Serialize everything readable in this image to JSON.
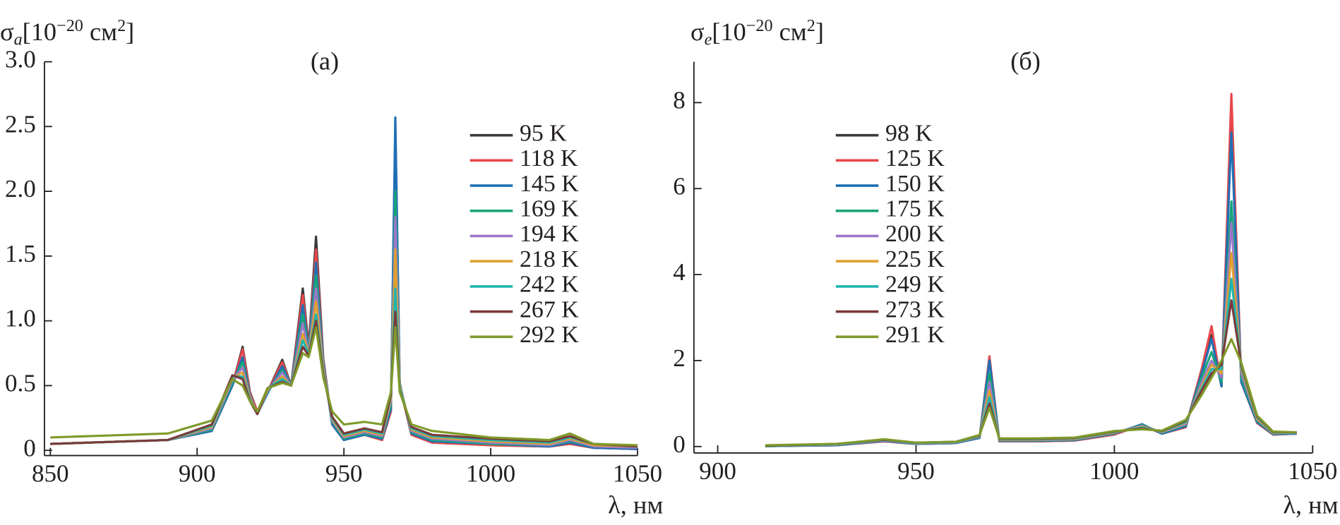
{
  "chart_data": [
    {
      "type": "line",
      "title": "(а)",
      "ylabel": [
        "σ",
        "a",
        "[10",
        "−20",
        " см",
        "2",
        "]"
      ],
      "xlabel": "λ, нм",
      "xlim": [
        848,
        1050
      ],
      "xticks": [
        850,
        900,
        950,
        1000,
        1050
      ],
      "ylim": [
        -0.04,
        3.0
      ],
      "yticks": [
        0,
        0.5,
        {
          "value": 1,
          "label": "1.0"
        },
        1.5,
        {
          "value": 2,
          "label": "2.0"
        },
        2.5,
        {
          "value": 3,
          "label": "3.0"
        }
      ],
      "legend": "upper right",
      "x": [
        850,
        890,
        905,
        912,
        915.5,
        918,
        920.5,
        924,
        929,
        932,
        936,
        938,
        940.5,
        943,
        946,
        950,
        957,
        963,
        966,
        967.5,
        969,
        973,
        980,
        1000,
        1020,
        1027,
        1035,
        1050
      ],
      "series": [
        {
          "name": "95 K",
          "color": "#3a3a3a",
          "values": [
            0.05,
            0.08,
            0.15,
            0.5,
            0.8,
            0.45,
            0.3,
            0.45,
            0.7,
            0.5,
            1.25,
            0.8,
            1.65,
            0.7,
            0.2,
            0.08,
            0.12,
            0.08,
            0.3,
            2.45,
            0.5,
            0.12,
            0.06,
            0.04,
            0.03,
            0.05,
            0.02,
            0.01
          ]
        },
        {
          "name": "118 K",
          "color": "#e8474b",
          "values": [
            0.05,
            0.08,
            0.15,
            0.5,
            0.78,
            0.44,
            0.3,
            0.45,
            0.68,
            0.5,
            1.2,
            0.78,
            1.55,
            0.68,
            0.2,
            0.08,
            0.12,
            0.08,
            0.3,
            2.5,
            0.5,
            0.12,
            0.06,
            0.04,
            0.03,
            0.05,
            0.02,
            0.01
          ]
        },
        {
          "name": "145 K",
          "color": "#1f6fb4",
          "values": [
            0.05,
            0.08,
            0.15,
            0.5,
            0.72,
            0.42,
            0.28,
            0.44,
            0.65,
            0.5,
            1.12,
            0.77,
            1.45,
            0.66,
            0.2,
            0.08,
            0.12,
            0.09,
            0.32,
            2.57,
            0.52,
            0.13,
            0.07,
            0.05,
            0.03,
            0.06,
            0.02,
            0.01
          ]
        },
        {
          "name": "169 K",
          "color": "#1aa37a",
          "values": [
            0.05,
            0.08,
            0.16,
            0.52,
            0.68,
            0.42,
            0.28,
            0.45,
            0.62,
            0.5,
            1.05,
            0.76,
            1.35,
            0.65,
            0.22,
            0.09,
            0.13,
            0.1,
            0.35,
            2.0,
            0.5,
            0.14,
            0.08,
            0.05,
            0.04,
            0.07,
            0.03,
            0.02
          ]
        },
        {
          "name": "194 K",
          "color": "#9b78c8",
          "values": [
            0.05,
            0.08,
            0.17,
            0.54,
            0.64,
            0.41,
            0.28,
            0.46,
            0.6,
            0.5,
            0.98,
            0.75,
            1.25,
            0.64,
            0.23,
            0.1,
            0.14,
            0.11,
            0.38,
            1.8,
            0.5,
            0.15,
            0.09,
            0.06,
            0.04,
            0.08,
            0.03,
            0.02
          ]
        },
        {
          "name": "218 K",
          "color": "#e0a030",
          "values": [
            0.05,
            0.08,
            0.18,
            0.56,
            0.6,
            0.4,
            0.28,
            0.47,
            0.57,
            0.5,
            0.9,
            0.74,
            1.15,
            0.62,
            0.24,
            0.11,
            0.15,
            0.12,
            0.4,
            1.55,
            0.5,
            0.16,
            0.1,
            0.07,
            0.05,
            0.09,
            0.04,
            0.03
          ]
        },
        {
          "name": "242 K",
          "color": "#20b4b0",
          "values": [
            0.05,
            0.08,
            0.19,
            0.57,
            0.57,
            0.39,
            0.28,
            0.48,
            0.55,
            0.5,
            0.85,
            0.74,
            1.05,
            0.6,
            0.25,
            0.12,
            0.16,
            0.13,
            0.42,
            1.25,
            0.48,
            0.17,
            0.11,
            0.08,
            0.06,
            0.1,
            0.05,
            0.03
          ]
        },
        {
          "name": "267 K",
          "color": "#7a3b3b",
          "values": [
            0.05,
            0.08,
            0.2,
            0.58,
            0.55,
            0.38,
            0.28,
            0.48,
            0.53,
            0.5,
            0.8,
            0.73,
            1.0,
            0.58,
            0.26,
            0.13,
            0.17,
            0.14,
            0.43,
            1.07,
            0.46,
            0.18,
            0.12,
            0.09,
            0.07,
            0.11,
            0.05,
            0.03
          ]
        },
        {
          "name": "292 K",
          "color": "#7f9a2a",
          "values": [
            0.1,
            0.13,
            0.23,
            0.55,
            0.5,
            0.38,
            0.3,
            0.48,
            0.52,
            0.5,
            0.75,
            0.72,
            0.95,
            0.56,
            0.3,
            0.2,
            0.22,
            0.2,
            0.45,
            0.95,
            0.45,
            0.2,
            0.15,
            0.1,
            0.08,
            0.13,
            0.05,
            0.04
          ]
        }
      ]
    },
    {
      "type": "line",
      "title": "(б)",
      "ylabel": [
        "σ",
        "e",
        "[10",
        "−20",
        " см",
        "2",
        "]"
      ],
      "xlabel": "λ, нм",
      "xlim": [
        894,
        1050
      ],
      "xticks": [
        900,
        950,
        1000,
        1050
      ],
      "ylim": [
        -0.15,
        8.95
      ],
      "yticks": [
        0,
        2,
        4,
        6,
        8
      ],
      "legend": "upper center",
      "x": [
        912,
        930,
        942,
        950,
        960,
        966,
        968.5,
        971,
        980,
        990,
        1000,
        1007,
        1012,
        1018,
        1022,
        1024.5,
        1027,
        1029.5,
        1032,
        1036,
        1040,
        1046
      ],
      "series": [
        {
          "name": "98 K",
          "color": "#3a3a3a",
          "values": [
            0.01,
            0.03,
            0.12,
            0.06,
            0.08,
            0.2,
            2.0,
            0.12,
            0.12,
            0.14,
            0.28,
            0.5,
            0.3,
            0.45,
            1.8,
            2.6,
            1.4,
            7.8,
            1.5,
            0.55,
            0.28,
            0.3
          ]
        },
        {
          "name": "125 K",
          "color": "#e8474b",
          "values": [
            0.01,
            0.03,
            0.12,
            0.06,
            0.08,
            0.2,
            2.1,
            0.12,
            0.12,
            0.14,
            0.28,
            0.5,
            0.3,
            0.45,
            1.8,
            2.8,
            1.4,
            8.2,
            1.5,
            0.55,
            0.28,
            0.3
          ]
        },
        {
          "name": "150 K",
          "color": "#1f6fb4",
          "values": [
            0.01,
            0.03,
            0.13,
            0.06,
            0.08,
            0.2,
            2.0,
            0.13,
            0.13,
            0.15,
            0.3,
            0.52,
            0.3,
            0.47,
            1.7,
            2.5,
            1.4,
            7.3,
            1.5,
            0.57,
            0.29,
            0.3
          ]
        },
        {
          "name": "175 K",
          "color": "#1aa37a",
          "values": [
            0.01,
            0.04,
            0.14,
            0.07,
            0.09,
            0.22,
            1.7,
            0.14,
            0.14,
            0.16,
            0.31,
            0.5,
            0.32,
            0.5,
            1.6,
            2.2,
            1.5,
            5.7,
            1.6,
            0.6,
            0.3,
            0.31
          ]
        },
        {
          "name": "200 K",
          "color": "#9b78c8",
          "values": [
            0.02,
            0.04,
            0.14,
            0.07,
            0.09,
            0.23,
            1.5,
            0.15,
            0.15,
            0.17,
            0.32,
            0.48,
            0.33,
            0.52,
            1.5,
            2.0,
            1.6,
            5.2,
            1.7,
            0.63,
            0.31,
            0.31
          ]
        },
        {
          "name": "225 K",
          "color": "#e0a030",
          "values": [
            0.02,
            0.05,
            0.15,
            0.08,
            0.1,
            0.24,
            1.3,
            0.16,
            0.16,
            0.18,
            0.33,
            0.46,
            0.34,
            0.55,
            1.4,
            1.9,
            1.7,
            4.5,
            1.8,
            0.65,
            0.32,
            0.32
          ]
        },
        {
          "name": "249 K",
          "color": "#20b4b0",
          "values": [
            0.02,
            0.05,
            0.15,
            0.08,
            0.1,
            0.25,
            1.15,
            0.17,
            0.17,
            0.19,
            0.34,
            0.44,
            0.35,
            0.57,
            1.35,
            1.8,
            1.8,
            3.9,
            1.85,
            0.68,
            0.33,
            0.32
          ]
        },
        {
          "name": "273 K",
          "color": "#7a3b3b",
          "values": [
            0.02,
            0.06,
            0.16,
            0.09,
            0.11,
            0.26,
            1.0,
            0.18,
            0.18,
            0.2,
            0.35,
            0.42,
            0.36,
            0.6,
            1.3,
            1.7,
            1.9,
            3.4,
            1.9,
            0.7,
            0.34,
            0.33
          ]
        },
        {
          "name": "291 K",
          "color": "#7f9a2a",
          "values": [
            0.03,
            0.06,
            0.17,
            0.09,
            0.11,
            0.27,
            0.9,
            0.19,
            0.19,
            0.21,
            0.36,
            0.4,
            0.37,
            0.62,
            1.2,
            1.6,
            2.0,
            2.5,
            1.95,
            0.72,
            0.35,
            0.33
          ]
        }
      ]
    }
  ]
}
